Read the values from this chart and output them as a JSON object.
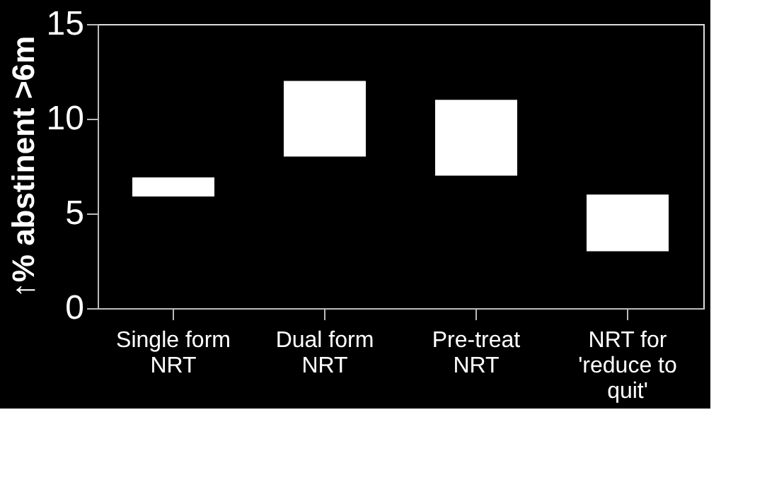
{
  "chart_data": {
    "type": "bar",
    "ylabel": "↑% abstinent >6m",
    "categories": [
      "Single form NRT",
      "Dual form NRT",
      "Pre-treat NRT",
      "NRT for 'reduce to quit'"
    ],
    "base": [
      5.9,
      8,
      7,
      3
    ],
    "values": [
      1,
      4,
      4,
      3
    ],
    "color": "#ffffff",
    "ylim": [
      0,
      15
    ],
    "yticks": [
      0,
      5,
      10,
      15
    ],
    "grid": false
  }
}
